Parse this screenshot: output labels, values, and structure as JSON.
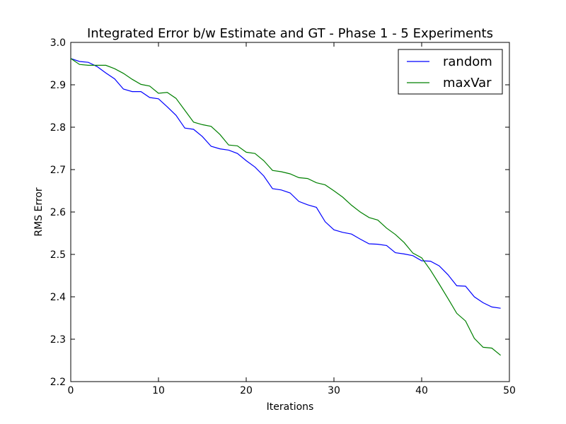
{
  "chart_data": {
    "type": "line",
    "title": "Integrated Error b/w Estimate and GT - Phase 1 - 5 Experiments",
    "xlabel": "Iterations",
    "ylabel": "RMS Error",
    "xlim": [
      0,
      50
    ],
    "ylim": [
      2.2,
      3.0
    ],
    "xticks": [
      "0",
      "10",
      "20",
      "30",
      "40",
      "50"
    ],
    "yticks": [
      "2.2",
      "2.3",
      "2.4",
      "2.5",
      "2.6",
      "2.7",
      "2.8",
      "2.9",
      "3.0"
    ],
    "grid": false,
    "legend_position": "top-right",
    "x": [
      0,
      1,
      2,
      3,
      4,
      5,
      6,
      7,
      8,
      9,
      10,
      11,
      12,
      13,
      14,
      15,
      16,
      17,
      18,
      19,
      20,
      21,
      22,
      23,
      24,
      25,
      26,
      27,
      28,
      29,
      30,
      31,
      32,
      33,
      34,
      35,
      36,
      37,
      38,
      39,
      40,
      41,
      42,
      43,
      44,
      45,
      46,
      47,
      48,
      49
    ],
    "series": [
      {
        "name": "random",
        "color": "#0000ff",
        "values": [
          2.962,
          2.955,
          2.953,
          2.943,
          2.928,
          2.914,
          2.89,
          2.884,
          2.884,
          2.87,
          2.867,
          2.848,
          2.828,
          2.798,
          2.795,
          2.778,
          2.755,
          2.749,
          2.746,
          2.738,
          2.721,
          2.706,
          2.685,
          2.655,
          2.652,
          2.645,
          2.625,
          2.617,
          2.611,
          2.577,
          2.558,
          2.552,
          2.548,
          2.536,
          2.525,
          2.524,
          2.521,
          2.504,
          2.501,
          2.497,
          2.485,
          2.484,
          2.473,
          2.452,
          2.426,
          2.425,
          2.4,
          2.386,
          2.376,
          2.373
        ]
      },
      {
        "name": "maxVar",
        "color": "#008000",
        "values": [
          2.962,
          2.948,
          2.946,
          2.946,
          2.946,
          2.938,
          2.927,
          2.913,
          2.901,
          2.897,
          2.88,
          2.882,
          2.868,
          2.84,
          2.812,
          2.806,
          2.802,
          2.783,
          2.758,
          2.756,
          2.741,
          2.738,
          2.721,
          2.698,
          2.695,
          2.69,
          2.681,
          2.679,
          2.669,
          2.664,
          2.65,
          2.635,
          2.616,
          2.6,
          2.587,
          2.581,
          2.562,
          2.547,
          2.528,
          2.503,
          2.492,
          2.463,
          2.43,
          2.396,
          2.361,
          2.343,
          2.302,
          2.281,
          2.279,
          2.262
        ]
      }
    ]
  }
}
